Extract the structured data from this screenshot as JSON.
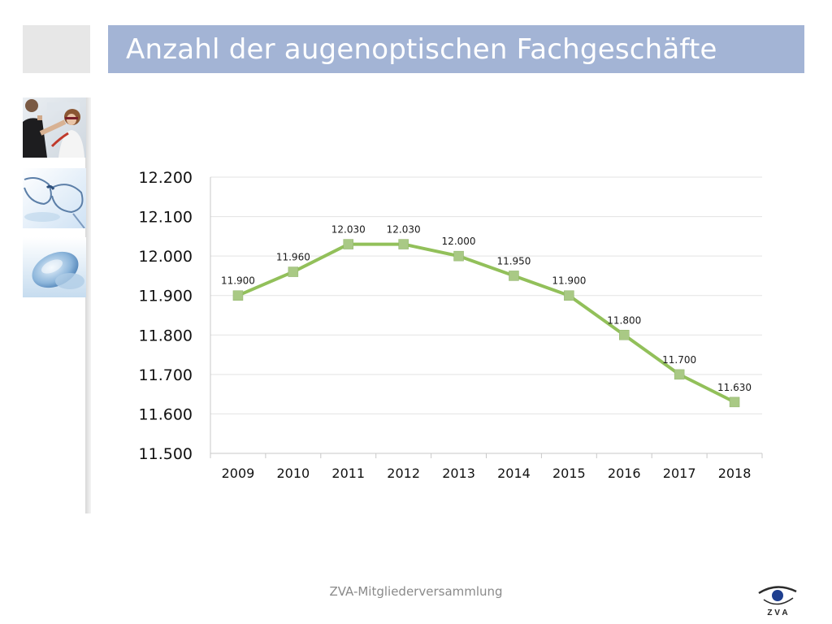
{
  "slide": {
    "title": "Anzahl der augenoptischen Fachgeschäfte",
    "footer": "ZVA-Mitgliederversammlung"
  },
  "logo": {
    "text": "Z V A",
    "icon": "eye-logo-icon"
  },
  "images": [
    {
      "icon": "optician-fitting-photo"
    },
    {
      "icon": "eyeglasses-photo"
    },
    {
      "icon": "contact-lens-photo"
    }
  ],
  "colors": {
    "title_bar": "#a3b4d5",
    "line": "#92c05a",
    "marker": "#a9c985",
    "grid": "#e3e3e3"
  },
  "chart_data": {
    "type": "line",
    "title": "",
    "xlabel": "",
    "ylabel": "",
    "categories": [
      "2009",
      "2010",
      "2011",
      "2012",
      "2013",
      "2014",
      "2015",
      "2016",
      "2017",
      "2018"
    ],
    "series": [
      {
        "values": [
          11900,
          11960,
          12030,
          12030,
          12000,
          11950,
          11900,
          11800,
          11700,
          11630
        ],
        "labels": [
          "11.900",
          "11.960",
          "12.030",
          "12.030",
          "12.000",
          "11.950",
          "11.900",
          "11.800",
          "11.700",
          "11.630"
        ]
      }
    ],
    "ylim": [
      11500,
      12200
    ],
    "yticks": [
      11500,
      11600,
      11700,
      11800,
      11900,
      12000,
      12100,
      12200
    ],
    "ytick_labels": [
      "11.500",
      "11.600",
      "11.700",
      "11.800",
      "11.900",
      "12.000",
      "12.100",
      "12.200"
    ],
    "grid": true,
    "legend": "none"
  }
}
